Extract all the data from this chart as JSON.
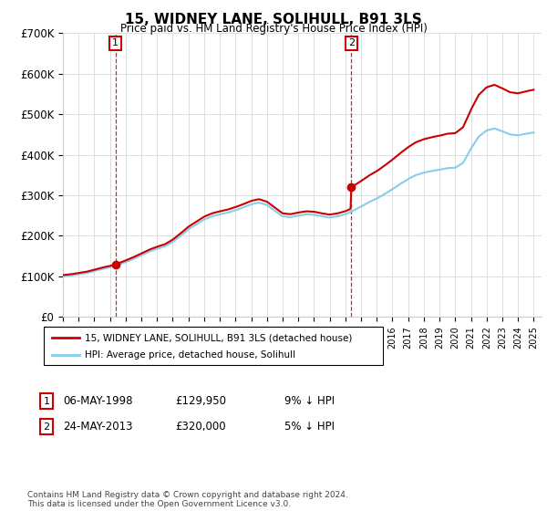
{
  "title": "15, WIDNEY LANE, SOLIHULL, B91 3LS",
  "subtitle": "Price paid vs. HM Land Registry's House Price Index (HPI)",
  "ylim": [
    0,
    700000
  ],
  "yticks": [
    0,
    100000,
    200000,
    300000,
    400000,
    500000,
    600000,
    700000
  ],
  "ytick_labels": [
    "£0",
    "£100K",
    "£200K",
    "£300K",
    "£400K",
    "£500K",
    "£600K",
    "£700K"
  ],
  "hpi_color": "#87CEEB",
  "price_color": "#cc0000",
  "dashed_color": "#cc0000",
  "background_color": "#ffffff",
  "grid_color": "#dddddd",
  "legend_items": [
    "15, WIDNEY LANE, SOLIHULL, B91 3LS (detached house)",
    "HPI: Average price, detached house, Solihull"
  ],
  "transaction1": {
    "label": "1",
    "date": "06-MAY-1998",
    "price": "£129,950",
    "note": "9% ↓ HPI"
  },
  "transaction2": {
    "label": "2",
    "date": "24-MAY-2013",
    "price": "£320,000",
    "note": "5% ↓ HPI"
  },
  "footer": "Contains HM Land Registry data © Crown copyright and database right 2024.\nThis data is licensed under the Open Government Licence v3.0.",
  "sale1_year": 1998.35,
  "sale1_price": 129950,
  "sale2_year": 2013.38,
  "sale2_price": 320000,
  "xmin": 1995.0,
  "xmax": 2025.5
}
